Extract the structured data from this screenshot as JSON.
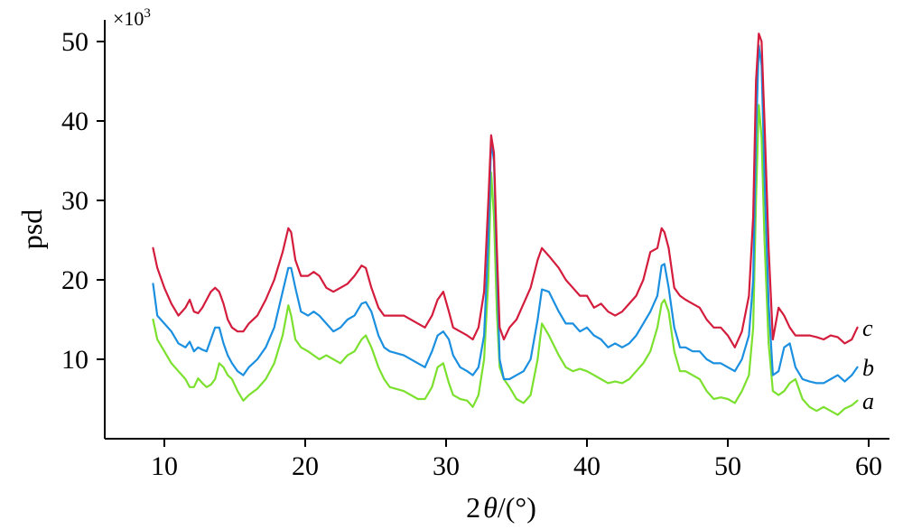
{
  "chart_data": {
    "type": "line",
    "title": "",
    "xlabel_prefix": "2",
    "xlabel_symbol": "θ",
    "xlabel_suffix": "/(°)",
    "ylabel": "psd",
    "y_multiplier_prefix": "×10",
    "y_multiplier_exponent": "3",
    "xlim": [
      5,
      62
    ],
    "ylim": [
      0,
      53
    ],
    "xticks": [
      10,
      20,
      30,
      40,
      50,
      60
    ],
    "yticks": [
      10,
      20,
      30,
      40,
      50
    ],
    "grid": false,
    "series": [
      {
        "name": "a",
        "color": "#7be02e",
        "x": [
          9.2,
          9.5,
          10,
          10.5,
          11,
          11.5,
          11.8,
          12.1,
          12.4,
          12.7,
          13,
          13.3,
          13.6,
          13.9,
          14.2,
          14.5,
          14.8,
          15.2,
          15.6,
          16,
          16.6,
          17.2,
          17.8,
          18.4,
          18.8,
          19,
          19.3,
          19.7,
          20.2,
          20.6,
          21,
          21.5,
          22,
          22.5,
          23,
          23.5,
          24,
          24.3,
          24.7,
          25.2,
          25.6,
          26,
          27,
          28,
          28.5,
          29,
          29.4,
          29.8,
          30.2,
          30.5,
          31,
          31.5,
          31.9,
          32.3,
          32.7,
          33,
          33.2,
          33.4,
          33.6,
          33.8,
          34.1,
          34.5,
          35,
          35.5,
          36,
          36.5,
          36.8,
          37.3,
          38,
          38.5,
          39,
          39.5,
          40,
          40.5,
          41,
          41.5,
          42,
          42.5,
          43,
          43.5,
          44,
          44.5,
          45,
          45.3,
          45.5,
          45.8,
          46.2,
          46.6,
          47,
          47.5,
          48,
          48.5,
          49,
          49.5,
          50,
          50.5,
          51,
          51.5,
          51.8,
          52,
          52.2,
          52.4,
          52.6,
          52.9,
          53.2,
          53.6,
          54,
          54.4,
          54.8,
          55.3,
          55.8,
          56.3,
          56.8,
          57.3,
          57.8,
          58.3,
          58.8,
          59.2
        ],
        "y": [
          15,
          12.5,
          11,
          9.5,
          8.5,
          7.5,
          6.5,
          6.5,
          7.6,
          7,
          6.5,
          6.8,
          7.5,
          9.5,
          9,
          8,
          7.5,
          6,
          4.8,
          5.5,
          6.3,
          7.5,
          9.5,
          13,
          16.8,
          15.5,
          12.5,
          11.5,
          11,
          10.5,
          10,
          10.5,
          10,
          9.5,
          10.5,
          11,
          12.5,
          13,
          11.5,
          9,
          7.5,
          6.5,
          6,
          5,
          5,
          6.5,
          9,
          9.5,
          7,
          5.5,
          5,
          4.8,
          4,
          5.5,
          10,
          20,
          33.5,
          28,
          16,
          9,
          7.5,
          6.5,
          5,
          4.5,
          5.5,
          10,
          14.5,
          13,
          10.5,
          9,
          8.5,
          8.8,
          8.5,
          8,
          7.5,
          7,
          7.2,
          7,
          7.5,
          8.5,
          9.5,
          11,
          14,
          17,
          17.5,
          16,
          11,
          8.5,
          8.5,
          8,
          7.5,
          6,
          5,
          5.2,
          5,
          4.5,
          6,
          8,
          14,
          30,
          42,
          38,
          25,
          12,
          6,
          5.5,
          6,
          7,
          7.5,
          5,
          4,
          3.5,
          4,
          3.5,
          3,
          3.8,
          4.2,
          4.8
        ]
      },
      {
        "name": "b",
        "color": "#1b8fe0",
        "x": [
          9.2,
          9.5,
          10,
          10.5,
          11,
          11.5,
          11.8,
          12.1,
          12.4,
          12.7,
          13,
          13.3,
          13.6,
          13.9,
          14.2,
          14.5,
          14.8,
          15.2,
          15.6,
          16,
          16.6,
          17.2,
          17.8,
          18.4,
          18.8,
          19,
          19.3,
          19.7,
          20.2,
          20.6,
          21,
          21.5,
          22,
          22.5,
          23,
          23.5,
          24,
          24.3,
          24.7,
          25.2,
          25.6,
          26,
          27,
          28,
          28.5,
          29,
          29.4,
          29.8,
          30.2,
          30.5,
          31,
          31.5,
          31.9,
          32.3,
          32.7,
          33,
          33.2,
          33.4,
          33.6,
          33.8,
          34.1,
          34.5,
          35,
          35.5,
          36,
          36.5,
          36.8,
          37.3,
          38,
          38.5,
          39,
          39.5,
          40,
          40.5,
          41,
          41.5,
          42,
          42.5,
          43,
          43.5,
          44,
          44.5,
          45,
          45.3,
          45.5,
          45.8,
          46.2,
          46.6,
          47,
          47.5,
          48,
          48.5,
          49,
          49.5,
          50,
          50.5,
          51,
          51.5,
          51.8,
          52,
          52.2,
          52.4,
          52.6,
          52.9,
          53.2,
          53.6,
          54,
          54.4,
          54.8,
          55.3,
          55.8,
          56.3,
          56.8,
          57.3,
          57.8,
          58.3,
          58.8,
          59.2
        ],
        "y": [
          19.5,
          15.5,
          14.5,
          13.5,
          12,
          11.5,
          12.2,
          11,
          11.5,
          11.2,
          11,
          12.5,
          14,
          14,
          12,
          10.5,
          9.5,
          8.5,
          8,
          9,
          10,
          11.5,
          14,
          18.5,
          21.5,
          21.5,
          19,
          16,
          15.5,
          16,
          15.5,
          14.5,
          13.5,
          14,
          15,
          15.5,
          17,
          17.2,
          16,
          13,
          11.5,
          11,
          10.5,
          9.5,
          9,
          11,
          13,
          13.5,
          12.5,
          10.5,
          9,
          8.5,
          8,
          9,
          13,
          25,
          37.5,
          35,
          22,
          10,
          7.5,
          7.5,
          8,
          8.5,
          10,
          15,
          18.8,
          18.5,
          16,
          14.5,
          14.5,
          13.5,
          14,
          13,
          12.5,
          11.5,
          12,
          11.5,
          12,
          13,
          14.5,
          16,
          18,
          21.8,
          22,
          19,
          14,
          11.5,
          11.5,
          11,
          11,
          10,
          9.5,
          9.5,
          9,
          8.5,
          10,
          13,
          20,
          38,
          49.5,
          47,
          33,
          17,
          8,
          8.5,
          11.5,
          12,
          9,
          7.5,
          7.2,
          7,
          7,
          7.5,
          8,
          7.2,
          8,
          9
        ]
      },
      {
        "name": "c",
        "color": "#d41c3c",
        "x": [
          9.2,
          9.5,
          10,
          10.5,
          11,
          11.5,
          11.8,
          12.1,
          12.4,
          12.7,
          13,
          13.3,
          13.6,
          13.9,
          14.2,
          14.5,
          14.8,
          15.2,
          15.6,
          16,
          16.6,
          17.2,
          17.8,
          18.4,
          18.8,
          19,
          19.3,
          19.7,
          20.2,
          20.6,
          21,
          21.5,
          22,
          22.5,
          23,
          23.5,
          24,
          24.3,
          24.7,
          25.2,
          25.6,
          26,
          27,
          28,
          28.5,
          29,
          29.4,
          29.8,
          30.2,
          30.5,
          31,
          31.5,
          31.9,
          32.3,
          32.7,
          33,
          33.2,
          33.4,
          33.6,
          33.8,
          34.1,
          34.5,
          35,
          35.5,
          36,
          36.5,
          36.8,
          37.3,
          38,
          38.5,
          39,
          39.5,
          40,
          40.5,
          41,
          41.5,
          42,
          42.5,
          43,
          43.5,
          44,
          44.5,
          45,
          45.3,
          45.5,
          45.8,
          46.2,
          46.6,
          47,
          47.5,
          48,
          48.5,
          49,
          49.5,
          50,
          50.5,
          51,
          51.5,
          51.8,
          52,
          52.2,
          52.4,
          52.6,
          52.9,
          53.2,
          53.6,
          54,
          54.4,
          54.8,
          55.3,
          55.8,
          56.3,
          56.8,
          57.3,
          57.8,
          58.3,
          58.8,
          59.2
        ],
        "y": [
          24,
          21.5,
          19,
          17,
          15.5,
          16.5,
          17.5,
          16,
          15.8,
          16.5,
          17.5,
          18.5,
          19,
          18.5,
          17,
          15,
          14,
          13.5,
          13.5,
          14.5,
          15.5,
          17.5,
          20,
          23.5,
          26.5,
          26,
          22.5,
          20.5,
          20.5,
          21,
          20.5,
          19,
          18.5,
          19,
          19.5,
          20.5,
          21.8,
          21.5,
          19,
          16.5,
          15.5,
          15.5,
          15.5,
          14.5,
          14,
          15.5,
          17.5,
          18.5,
          16,
          14,
          13.5,
          13,
          12.5,
          14,
          18.5,
          30,
          38.2,
          36,
          24,
          14,
          12.5,
          14,
          15,
          17,
          19,
          22.5,
          24,
          23,
          21.5,
          20,
          19,
          18,
          18,
          16.5,
          17,
          16,
          15.5,
          16,
          17,
          18,
          20,
          23.5,
          24,
          26.5,
          26,
          24,
          19,
          18,
          17.5,
          17,
          16.5,
          15,
          14,
          14,
          13,
          11.5,
          13.5,
          18,
          28,
          45,
          51,
          50,
          40,
          24,
          12.5,
          16.5,
          15.5,
          14,
          13,
          13,
          13,
          12.8,
          12.5,
          13,
          12.8,
          12,
          12.5,
          14
        ]
      }
    ]
  }
}
